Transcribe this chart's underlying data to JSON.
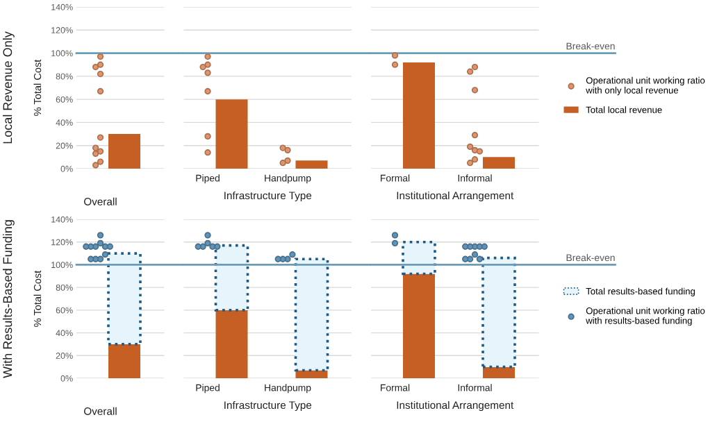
{
  "chart_data": [
    {
      "type": "bar",
      "title": "Local Revenue Only",
      "ylabel": "% Total Cost",
      "categories": [
        "Overall"
      ],
      "ylim": [
        0,
        140
      ],
      "yticks": [
        {
          "value": 0,
          "label": "0%"
        },
        {
          "value": 20,
          "label": "20%"
        },
        {
          "value": 40,
          "label": "40%"
        },
        {
          "value": 60,
          "label": "60%"
        },
        {
          "value": 80,
          "label": "80%"
        },
        {
          "value": 100,
          "label": "100%"
        },
        {
          "value": 120,
          "label": "120%"
        },
        {
          "value": 140,
          "label": "140%"
        }
      ],
      "grid": "y",
      "marker": "circle",
      "ref_lines": [
        {
          "axis": "y",
          "value": 100,
          "color": "#6b9bb8"
        }
      ],
      "series": [
        {
          "type": "scatter",
          "color": "#e2946a",
          "x": [
            "Overall",
            "Overall",
            "Overall",
            "Overall",
            "Overall",
            "Overall",
            "Overall",
            "Overall",
            "Overall",
            "Overall",
            "Overall"
          ],
          "values": [
            97,
            90,
            82,
            88,
            67,
            27,
            15,
            18,
            13,
            6,
            3
          ]
        },
        {
          "color": "#c55f24",
          "values": [
            30
          ]
        }
      ]
    },
    {
      "type": "bar",
      "xlabel": "Infrastructure Type",
      "categories": [
        "Piped",
        "Handpump"
      ],
      "ylim": [
        0,
        140
      ],
      "yticks": [
        0,
        20,
        40,
        60,
        80,
        100,
        120,
        140
      ],
      "grid": "y",
      "tick_labels": "x",
      "marker": "circle",
      "ref_lines": [
        {
          "axis": "y",
          "value": 100,
          "color": "#6b9bb8"
        }
      ],
      "series": [
        {
          "type": "scatter",
          "color": "#e2946a",
          "x": [
            "Piped",
            "Piped",
            "Piped",
            "Piped",
            "Piped",
            "Piped",
            "Piped",
            "Handpump",
            "Handpump",
            "Handpump",
            "Handpump"
          ],
          "values": [
            97,
            90,
            83,
            88,
            67,
            28,
            14,
            16,
            18,
            7,
            5
          ]
        },
        {
          "color": "#c55f24",
          "values": [
            60,
            7
          ]
        }
      ]
    },
    {
      "type": "bar",
      "xlabel": "Institutional Arrangement",
      "categories": [
        "Formal",
        "Informal"
      ],
      "ylim": [
        0,
        140
      ],
      "yticks": [
        0,
        20,
        40,
        60,
        80,
        100,
        120,
        140
      ],
      "grid": "y",
      "tick_labels": "x",
      "marker": "circle",
      "legend": "right",
      "ref_lines": [
        {
          "axis": "y",
          "value": 100,
          "label": "Break-even",
          "color": "#6b9bb8"
        }
      ],
      "series": [
        {
          "type": "scatter",
          "name": "Operational unit working ratio\nwith only local revenue",
          "color": "#e2946a",
          "x": [
            "Formal",
            "Formal",
            "Informal",
            "Informal",
            "Informal",
            "Informal",
            "Informal",
            "Informal",
            "Informal",
            "Informal",
            "Informal"
          ],
          "values": [
            98,
            90,
            88,
            84,
            68,
            29,
            16,
            19,
            15,
            8,
            5
          ]
        },
        {
          "name": "Total local revenue",
          "color": "#c55f24",
          "values": [
            92,
            10
          ]
        }
      ]
    },
    {
      "type": "bar",
      "title": "With Results-Based Funding",
      "ylabel": "% Total Cost",
      "categories": [
        "Overall"
      ],
      "stacked": true,
      "ylim": [
        0,
        140
      ],
      "yticks": [
        {
          "value": 0,
          "label": "0%"
        },
        {
          "value": 20,
          "label": "20%"
        },
        {
          "value": 40,
          "label": "40%"
        },
        {
          "value": 60,
          "label": "60%"
        },
        {
          "value": 80,
          "label": "80%"
        },
        {
          "value": 100,
          "label": "100%"
        },
        {
          "value": 120,
          "label": "120%"
        },
        {
          "value": 140,
          "label": "140%"
        }
      ],
      "grid": "y",
      "marker": "circle",
      "ref_lines": [
        {
          "axis": "y",
          "value": 100,
          "color": "#6b9bb8"
        }
      ],
      "series": [
        {
          "color": "#c55f24",
          "values": [
            30
          ]
        },
        {
          "color": "#e6f4fb",
          "line_style": "dotted",
          "values": [
            80
          ]
        },
        {
          "type": "scatter",
          "color": "#5f93b8",
          "x": [
            "Overall",
            "Overall",
            "Overall",
            "Overall",
            "Overall",
            "Overall",
            "Overall",
            "Overall",
            "Overall",
            "Overall",
            "Overall"
          ],
          "values": [
            126,
            119,
            116,
            116,
            116,
            116,
            116,
            105,
            105,
            109,
            105
          ]
        }
      ]
    },
    {
      "type": "bar",
      "xlabel": "Infrastructure Type",
      "categories": [
        "Piped",
        "Handpump"
      ],
      "stacked": true,
      "ylim": [
        0,
        140
      ],
      "yticks": [
        0,
        20,
        40,
        60,
        80,
        100,
        120,
        140
      ],
      "grid": "y",
      "tick_labels": "x",
      "marker": "circle",
      "ref_lines": [
        {
          "axis": "y",
          "value": 100,
          "color": "#6b9bb8"
        }
      ],
      "series": [
        {
          "color": "#c55f24",
          "values": [
            60,
            7
          ]
        },
        {
          "color": "#e6f4fb",
          "line_style": "dotted",
          "values": [
            57,
            98
          ]
        },
        {
          "type": "scatter",
          "color": "#5f93b8",
          "x": [
            "Piped",
            "Piped",
            "Piped",
            "Piped",
            "Piped",
            "Piped",
            "Handpump",
            "Handpump",
            "Handpump",
            "Handpump"
          ],
          "values": [
            126,
            119,
            116,
            116,
            116,
            116,
            105,
            105,
            109,
            105
          ]
        }
      ]
    },
    {
      "type": "bar",
      "xlabel": "Institutional Arrangement",
      "categories": [
        "Formal",
        "Informal"
      ],
      "stacked": true,
      "ylim": [
        0,
        140
      ],
      "yticks": [
        0,
        20,
        40,
        60,
        80,
        100,
        120,
        140
      ],
      "grid": "y",
      "tick_labels": "x",
      "marker": "circle",
      "legend": "right",
      "ref_lines": [
        {
          "axis": "y",
          "value": 100,
          "label": "Break-even",
          "color": "#6b9bb8"
        }
      ],
      "series": [
        {
          "color": "#c55f24",
          "values": [
            92,
            10
          ]
        },
        {
          "name": "Total results-based funding",
          "color": "#e6f4fb",
          "line_style": "dotted",
          "values": [
            28,
            96
          ]
        },
        {
          "type": "scatter",
          "name": "Operational unit working ratio\nwith results-based funding",
          "color": "#5f93b8",
          "x": [
            "Formal",
            "Formal",
            "Informal",
            "Informal",
            "Informal",
            "Informal",
            "Informal",
            "Informal",
            "Informal",
            "Informal",
            "Informal"
          ],
          "values": [
            126,
            119,
            116,
            116,
            116,
            116,
            116,
            109,
            105,
            105,
            105
          ]
        }
      ]
    }
  ]
}
